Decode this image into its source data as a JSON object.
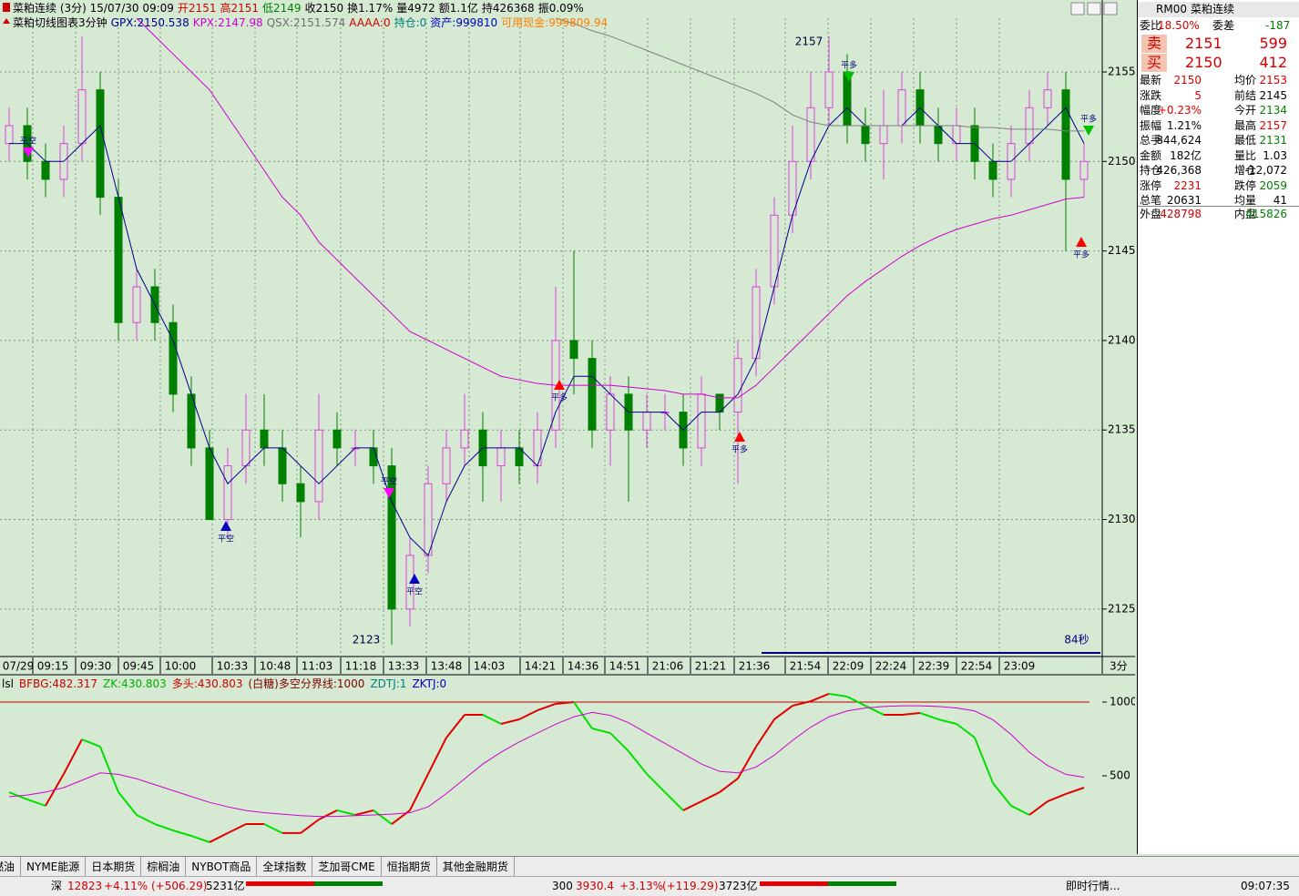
{
  "header": {
    "line1": [
      {
        "text": "菜粕连续 (3分) 15/07/30 09:09",
        "color": "#000000"
      },
      {
        "text": "开2151",
        "color": "#d00000"
      },
      {
        "text": "高2151",
        "color": "#d00000"
      },
      {
        "text": "低2149",
        "color": "#008000"
      },
      {
        "text": "收2150",
        "color": "#000000"
      },
      {
        "text": "换1.17%",
        "color": "#000000"
      },
      {
        "text": "量4972",
        "color": "#000000"
      },
      {
        "text": "额1.1亿",
        "color": "#000000"
      },
      {
        "text": "持426368",
        "color": "#000000"
      },
      {
        "text": "振0.09%",
        "color": "#000000"
      }
    ],
    "line2": [
      {
        "text": "菜粕切线图表3分钟",
        "color": "#000000"
      },
      {
        "text": "GPX:2150.538",
        "color": "#00008b"
      },
      {
        "text": "KPX:2147.98",
        "color": "#d000d0"
      },
      {
        "text": "QSX:2151.574",
        "color": "#707070"
      },
      {
        "text": "AAAA:0",
        "color": "#d00000"
      },
      {
        "text": "持仓:0",
        "color": "#008080"
      },
      {
        "text": "资产:999810",
        "color": "#0000c0"
      },
      {
        "text": "可用现金:999809.94",
        "color": "#ff8000"
      }
    ]
  },
  "chart_data": [
    {
      "type": "candlestick",
      "open": [
        2151,
        2152,
        2150,
        2149,
        2151,
        2154,
        2148,
        2141,
        2143,
        2141,
        2137,
        2134,
        2130,
        2133,
        2135,
        2134,
        2132,
        2131,
        2135,
        2134,
        2134,
        2133,
        2125,
        2128,
        2132,
        2134,
        2135,
        2133,
        2134,
        2133,
        2135,
        2140,
        2139,
        2135,
        2137,
        2135,
        2136,
        2136,
        2134,
        2137,
        2136,
        2139,
        2143,
        2147,
        2150,
        2153,
        2155,
        2152,
        2151,
        2152,
        2154,
        2152,
        2151,
        2152,
        2150,
        2149,
        2151,
        2153,
        2154,
        2149
      ],
      "high": [
        2153,
        2153,
        2151,
        2152,
        2157,
        2155,
        2149,
        2144,
        2144,
        2142,
        2138,
        2135,
        2134,
        2137,
        2137,
        2135,
        2133,
        2137,
        2136,
        2135,
        2135,
        2134,
        2129,
        2133,
        2135,
        2137,
        2136,
        2135,
        2135,
        2136,
        2143,
        2145,
        2140,
        2138,
        2138,
        2137,
        2137,
        2137,
        2138,
        2137,
        2140,
        2144,
        2148,
        2152,
        2155,
        2157,
        2156,
        2153,
        2154,
        2155,
        2155,
        2153,
        2153,
        2153,
        2151,
        2152,
        2154,
        2155,
        2155,
        2151
      ],
      "low": [
        2150,
        2149,
        2148,
        2148,
        2150,
        2147,
        2140,
        2140,
        2140,
        2136,
        2133,
        2130,
        2129,
        2132,
        2133,
        2131,
        2129,
        2130,
        2133,
        2133,
        2132,
        2123,
        2124,
        2127,
        2131,
        2133,
        2131,
        2131,
        2132,
        2132,
        2134,
        2137,
        2134,
        2133,
        2131,
        2134,
        2135,
        2133,
        2133,
        2135,
        2132,
        2138,
        2142,
        2146,
        2149,
        2152,
        2151,
        2150,
        2149,
        2151,
        2151,
        2150,
        2150,
        2149,
        2148,
        2148,
        2150,
        2152,
        2145,
        2148
      ],
      "close": [
        2152,
        2150,
        2149,
        2151,
        2154,
        2148,
        2141,
        2143,
        2141,
        2137,
        2134,
        2130,
        2133,
        2135,
        2134,
        2132,
        2131,
        2135,
        2134,
        2134,
        2133,
        2125,
        2128,
        2132,
        2134,
        2135,
        2133,
        2134,
        2133,
        2135,
        2140,
        2139,
        2135,
        2137,
        2135,
        2136,
        2136,
        2134,
        2137,
        2136,
        2139,
        2143,
        2147,
        2150,
        2153,
        2155,
        2152,
        2151,
        2152,
        2154,
        2152,
        2151,
        2152,
        2150,
        2149,
        2151,
        2153,
        2154,
        2149,
        2150
      ],
      "up_color": "#e040e0",
      "down_color": "#008000",
      "series": [
        {
          "color": "#00008b",
          "values": [
            2151,
            2151,
            2150,
            2150,
            2151,
            2152,
            2148,
            2144,
            2142,
            2140,
            2137,
            2134,
            2132,
            2133,
            2134,
            2134,
            2133,
            2132,
            2133,
            2134,
            2134,
            2131,
            2129,
            2128,
            2131,
            2133,
            2134,
            2134,
            2134,
            2133,
            2136,
            2138,
            2138,
            2137,
            2136,
            2136,
            2136,
            2135,
            2136,
            2136,
            2137,
            2139,
            2143,
            2147,
            2150,
            2152,
            2153,
            2152,
            2152,
            2152,
            2153,
            2152,
            2151,
            2151,
            2150,
            2150,
            2151,
            2152,
            2153,
            2151
          ]
        },
        {
          "color": "#d000d0",
          "values": [
            null,
            null,
            null,
            null,
            null,
            null,
            null,
            2158,
            2157,
            2156,
            2155,
            2154,
            2152.5,
            2151,
            2149.5,
            2148,
            2147,
            2145.5,
            2144.5,
            2143.5,
            2142.5,
            2141.5,
            2140.5,
            2140,
            2139.5,
            2139,
            2138.5,
            2138,
            2137.8,
            2137.6,
            2137.5,
            2137.5,
            2137.5,
            2137.5,
            2137.4,
            2137.3,
            2137.2,
            2137,
            2137,
            2136.8,
            2136.8,
            2137.5,
            2138.5,
            2139.5,
            2140.5,
            2141.5,
            2142.5,
            2143.3,
            2144,
            2144.7,
            2145.3,
            2145.8,
            2146.2,
            2146.5,
            2146.8,
            2147,
            2147.3,
            2147.6,
            2147.9,
            2148
          ]
        },
        {
          "color": "#808080",
          "values": [
            null,
            null,
            null,
            null,
            null,
            null,
            null,
            null,
            null,
            null,
            null,
            null,
            null,
            null,
            null,
            null,
            null,
            null,
            null,
            null,
            null,
            null,
            null,
            null,
            null,
            null,
            null,
            null,
            null,
            null,
            2158,
            2157.7,
            2157.3,
            2157,
            2156.6,
            2156.2,
            2155.8,
            2155.4,
            2155,
            2154.6,
            2154.2,
            2153.8,
            2153.3,
            2152.6,
            2152.2,
            2152,
            2152,
            2152,
            2152,
            2152,
            2152,
            2152,
            2152,
            2151.9,
            2151.9,
            2151.8,
            2151.8,
            2151.8,
            2151.7,
            2151.7
          ]
        }
      ],
      "ylim": [
        2122.4,
        2158.0
      ],
      "yticks": [
        2125,
        2130,
        2135,
        2140,
        2145,
        2150,
        2155
      ],
      "x_labels": [
        "07/29",
        "09:15",
        "09:30",
        "09:45",
        "10:00",
        "10:33",
        "10:48",
        "11:03",
        "11:18",
        "13:33",
        "13:48",
        "14:03",
        "14:21",
        "14:36",
        "14:51",
        "21:06",
        "21:21",
        "21:36",
        "21:54",
        "22:09",
        "22:24",
        "22:39",
        "22:54",
        "23:09"
      ],
      "period_label": "3分",
      "annotations": [
        "2157",
        "2123",
        "84秒"
      ],
      "signals": [
        "平空",
        "平空",
        "平空",
        "平多",
        "平多",
        "平多",
        "平多",
        "平空",
        "平多"
      ],
      "grid": true
    },
    {
      "type": "line",
      "header": [
        {
          "text": "lsl",
          "color": "#000000"
        },
        {
          "text": "BFBG:482.317",
          "color": "#d00000"
        },
        {
          "text": "ZK:430.803",
          "color": "#00b000"
        },
        {
          "text": "多头:430.803",
          "color": "#d00000"
        },
        {
          "text": "(白糖)多空分界线:1000",
          "color": "#800000"
        },
        {
          "text": "ZDTJ:1",
          "color": "#008080"
        },
        {
          "text": "ZKTJ:0",
          "color": "#0000c0"
        }
      ],
      "series": [
        {
          "up_color": "#e00000",
          "down_color": "#00e000",
          "values": [
            389,
            340,
            297,
            513,
            747,
            698,
            389,
            235,
            173,
            130,
            93,
            50,
            112,
            173,
            173,
            112,
            112,
            204,
            266,
            235,
            266,
            173,
            266,
            513,
            759,
            914,
            914,
            852,
            883,
            944,
            988,
            1000,
            821,
            790,
            667,
            513,
            389,
            266,
            327,
            389,
            482,
            698,
            883,
            975,
            1006,
            1056,
            1037,
            975,
            914,
            914,
            926,
            883,
            852,
            759,
            451,
            297,
            235,
            327,
            377,
            420
          ]
        },
        {
          "color": "#d000d0",
          "values": [
            358,
            370,
            390,
            420,
            470,
            520,
            510,
            480,
            440,
            400,
            360,
            320,
            290,
            265,
            250,
            240,
            230,
            225,
            225,
            230,
            235,
            240,
            250,
            290,
            380,
            480,
            580,
            660,
            730,
            790,
            850,
            900,
            930,
            910,
            860,
            790,
            720,
            650,
            580,
            530,
            520,
            560,
            640,
            740,
            830,
            900,
            940,
            960,
            970,
            975,
            975,
            970,
            960,
            940,
            880,
            780,
            660,
            570,
            510,
            490
          ]
        }
      ],
      "reference_line": 1000,
      "reference_color": "#c00000",
      "ylim": [
        -12,
        1068
      ],
      "yticks": [
        500,
        1000
      ]
    }
  ],
  "quote": {
    "code": "RM00",
    "name": "菜粕连续",
    "ratio": [
      "委比",
      "18.50%",
      "委差",
      "-187"
    ],
    "sell": [
      "卖",
      "2151",
      "599"
    ],
    "buy": [
      "买",
      "2150",
      "412"
    ],
    "rows": [
      [
        "最新",
        "2150",
        "均价",
        "2153"
      ],
      [
        "涨跌",
        "5",
        "前结",
        "2145"
      ],
      [
        "幅度",
        "+0.23%",
        "今开",
        "2134"
      ],
      [
        "振幅",
        "1.21%",
        "最高",
        "2157"
      ],
      [
        "总手",
        "844,624",
        "最低",
        "2131"
      ],
      [
        "金额",
        "182亿",
        "量比",
        "1.03"
      ],
      [
        "持仓",
        "426,368",
        "增仓",
        "-12,072"
      ],
      [
        "涨停",
        "2231",
        "跌停",
        "2059"
      ],
      [
        "总笔",
        "20631",
        "均量",
        "41"
      ]
    ],
    "row_colors": [
      [
        "#e00000",
        "#e00000"
      ],
      [
        "#e00000",
        "#000000"
      ],
      [
        "#e00000",
        "#008000"
      ],
      [
        "#000000",
        "#e00000"
      ],
      [
        "#000000",
        "#008000"
      ],
      [
        "#000000",
        "#000000"
      ],
      [
        "#000000",
        "#000000"
      ],
      [
        "#e00000",
        "#008000"
      ],
      [
        "#000000",
        "#000000"
      ]
    ],
    "outer": [
      "外盘",
      "428798",
      "内盘",
      "415826"
    ]
  },
  "tabs": [
    "燃油",
    "NYME能源",
    "日本期货",
    "棕榈油",
    "NYBOT商品",
    "全球指数",
    "芝加哥CME",
    "恒指期货",
    "其他金融期货"
  ],
  "status": {
    "left": [
      "深",
      "12823",
      "+4.11%",
      "(+506.29)",
      "5231亿"
    ],
    "right": [
      "300",
      "3930.4",
      "+3.13%",
      "(+119.29)",
      "3723亿"
    ],
    "info": "即时行情...",
    "time": "09:07:35"
  }
}
